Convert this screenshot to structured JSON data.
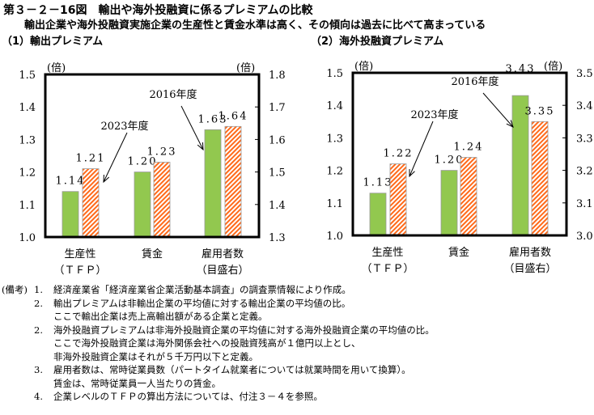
{
  "title": "第３－２－16図　輸出や海外投融資に係るプレミアムの比較",
  "subtitle": "輸出企業や海外投融資実施企業の生産性と賃金水準は高く、その傾向は過去に比べて高まっている",
  "colors": {
    "y2016": "#92c84f",
    "y2023": "#ff6a1a"
  },
  "chart_data": [
    {
      "type": "bar",
      "title": "（1）輸出プレミアム",
      "unit_left": "(倍)",
      "unit_right": "(倍)",
      "categories": [
        [
          "生産性",
          "（ＴＦＰ）"
        ],
        [
          "賃金",
          ""
        ],
        [
          "雇用者数",
          "（目盛右）"
        ]
      ],
      "series": [
        {
          "name": "2016年度",
          "values": [
            1.14,
            1.2,
            1.63
          ],
          "labels": [
            "1.14",
            "1.20",
            "1.63"
          ]
        },
        {
          "name": "2023年度",
          "values": [
            1.21,
            1.23,
            1.64
          ],
          "labels": [
            "1.21",
            "1.23",
            "1.64"
          ]
        }
      ],
      "ylim_left": [
        1.0,
        1.5
      ],
      "ylim_right": [
        1.3,
        1.8
      ],
      "yticks_left": [
        "1.0",
        "1.1",
        "1.2",
        "1.3",
        "1.4",
        "1.5"
      ],
      "yticks_right": [
        "1.3",
        "1.4",
        "1.5",
        "1.6",
        "1.7",
        "1.8"
      ],
      "right_axis_categories": [
        2
      ]
    },
    {
      "type": "bar",
      "title": "（2）海外投融資プレミアム",
      "unit_left": "(倍)",
      "unit_right": "(倍)",
      "categories": [
        [
          "生産性",
          "（ＴＦＰ）"
        ],
        [
          "賃金",
          ""
        ],
        [
          "雇用者数",
          "（目盛右）"
        ]
      ],
      "series": [
        {
          "name": "2016年度",
          "values": [
            1.13,
            1.2,
            3.43
          ],
          "labels": [
            "1.13",
            "1.20",
            "3.43"
          ]
        },
        {
          "name": "2023年度",
          "values": [
            1.22,
            1.24,
            3.35
          ],
          "labels": [
            "1.22",
            "1.24",
            "3.35"
          ]
        }
      ],
      "ylim_left": [
        1.0,
        1.5
      ],
      "ylim_right": [
        3.0,
        3.5
      ],
      "yticks_left": [
        "1.0",
        "1.1",
        "1.2",
        "1.3",
        "1.4",
        "1.5"
      ],
      "yticks_right": [
        "3.0",
        "3.1",
        "3.2",
        "3.3",
        "3.4",
        "3.5"
      ],
      "right_axis_categories": [
        2
      ]
    }
  ],
  "notes": {
    "label": "(備考)",
    "items": [
      {
        "num": "1.",
        "lines": [
          "経済産業省「経済産業省企業活動基本調査」の調査票情報により作成。"
        ]
      },
      {
        "num": "2.",
        "lines": [
          "輸出プレミアムは非輸出企業の平均値に対する輸出企業の平均値の比。",
          "ここで輸出企業は売上高輸出額がある企業と定義。"
        ]
      },
      {
        "num": "2.",
        "lines": [
          "海外投融資プレミアムは非海外投融資企業の平均値に対する海外投融資企業の平均値の比。",
          "ここで海外投融資企業は海外関係会社への投融資残高が１億円以上とし、",
          "非海外投融資企業はそれが５千万円以下と定義。"
        ]
      },
      {
        "num": "3.",
        "lines": [
          "雇用者数は、常時従業員数（パートタイム就業者については就業時間を用いて換算）。",
          "賃金は、常時従業員一人当たりの賃金。"
        ]
      },
      {
        "num": "4.",
        "lines": [
          "企業レベルのＴＦＰの算出方法については、付注３－４を参照。"
        ]
      }
    ]
  }
}
